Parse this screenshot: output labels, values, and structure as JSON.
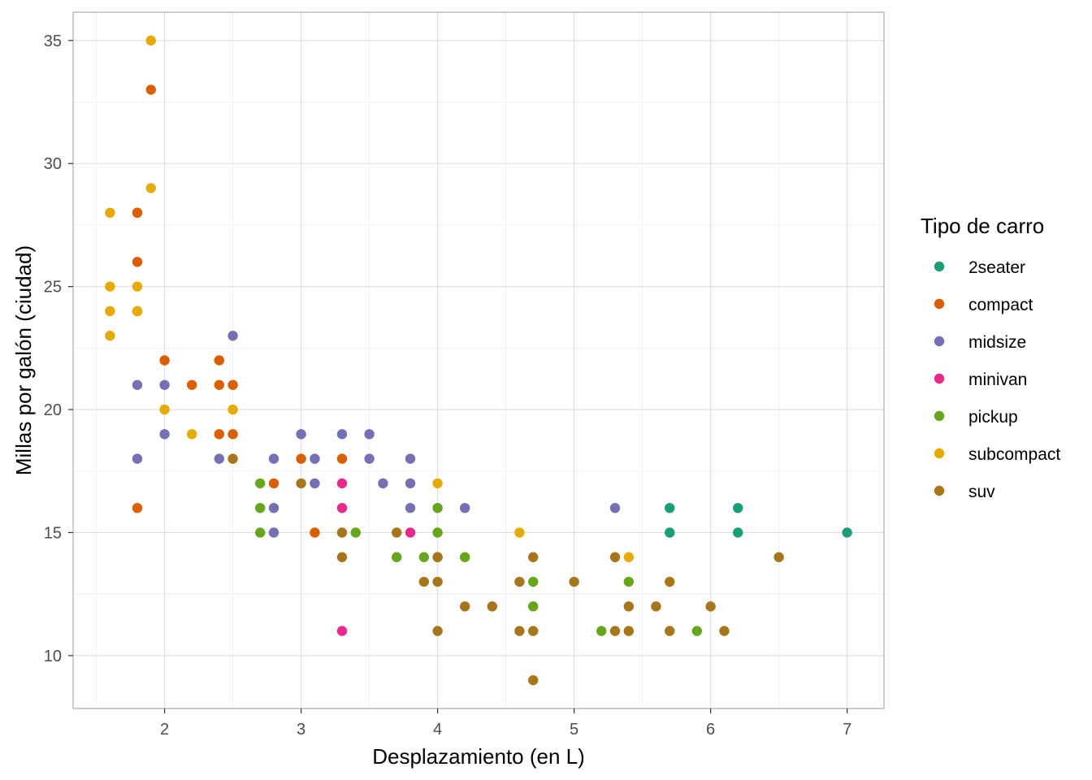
{
  "chart_data": {
    "type": "scatter",
    "xlabel": "Desplazamiento (en L)",
    "ylabel": "Millas por galón (ciudad)",
    "xlim": [
      1.33,
      7.27
    ],
    "ylim": [
      7.85,
      36.15
    ],
    "x_ticks": [
      2,
      3,
      4,
      5,
      6,
      7
    ],
    "y_ticks": [
      10,
      15,
      20,
      25,
      30,
      35
    ],
    "grid": true,
    "legend": {
      "title": "Tipo de carro",
      "position": "right"
    },
    "series": [
      {
        "name": "2seater",
        "color": "#1b9e77",
        "x": [
          5.7,
          5.7,
          6.2,
          6.2,
          7.0
        ],
        "y": [
          16,
          15,
          16,
          15,
          15
        ]
      },
      {
        "name": "compact",
        "color": "#d95f02",
        "x": [
          1.8,
          1.8,
          1.8,
          1.8,
          1.8,
          1.9,
          2.0,
          2.2,
          2.4,
          2.4,
          2.4,
          2.5,
          2.5,
          2.8,
          3.0,
          3.1,
          3.3
        ],
        "y": [
          16,
          24,
          26,
          28,
          28,
          33,
          22,
          21,
          22,
          21,
          19,
          21,
          19,
          17,
          18,
          15,
          18
        ]
      },
      {
        "name": "midsize",
        "color": "#7570b3",
        "x": [
          1.8,
          1.8,
          2.0,
          2.0,
          2.4,
          2.5,
          2.8,
          2.8,
          2.8,
          3.0,
          3.1,
          3.1,
          3.3,
          3.5,
          3.5,
          3.6,
          3.8,
          3.8,
          3.8,
          4.2,
          5.3
        ],
        "y": [
          21,
          18,
          21,
          19,
          18,
          23,
          18,
          16,
          15,
          19,
          18,
          17,
          19,
          19,
          18,
          17,
          18,
          17,
          16,
          16,
          16
        ]
      },
      {
        "name": "minivan",
        "color": "#e7298a",
        "x": [
          3.3,
          3.3,
          3.3,
          3.8
        ],
        "y": [
          17,
          16,
          11,
          15
        ]
      },
      {
        "name": "pickup",
        "color": "#66a61e",
        "x": [
          2.7,
          2.7,
          2.7,
          3.4,
          3.7,
          3.9,
          4.0,
          4.0,
          4.0,
          4.2,
          4.7,
          4.7,
          5.2,
          5.4,
          5.9
        ],
        "y": [
          17,
          16,
          15,
          15,
          14,
          14,
          16,
          15,
          14,
          14,
          13,
          12,
          11,
          13,
          11
        ]
      },
      {
        "name": "subcompact",
        "color": "#e6ab02",
        "x": [
          1.6,
          1.6,
          1.6,
          1.6,
          1.8,
          1.8,
          1.9,
          1.9,
          2.0,
          2.2,
          2.5,
          4.0,
          4.6,
          5.4
        ],
        "y": [
          28,
          25,
          24,
          23,
          25,
          24,
          35,
          29,
          20,
          19,
          20,
          17,
          15,
          14
        ]
      },
      {
        "name": "suv",
        "color": "#a6761d",
        "x": [
          2.5,
          3.0,
          3.3,
          3.3,
          3.7,
          3.9,
          4.0,
          4.0,
          4.0,
          4.2,
          4.4,
          4.6,
          4.6,
          4.7,
          4.7,
          4.7,
          5.0,
          5.3,
          5.3,
          5.4,
          5.4,
          5.6,
          5.7,
          5.7,
          6.0,
          6.1,
          6.5
        ],
        "y": [
          18,
          17,
          15,
          14,
          15,
          13,
          14,
          13,
          11,
          12,
          12,
          13,
          11,
          14,
          11,
          9,
          13,
          14,
          11,
          12,
          11,
          12,
          13,
          11,
          12,
          11,
          14
        ]
      }
    ]
  }
}
